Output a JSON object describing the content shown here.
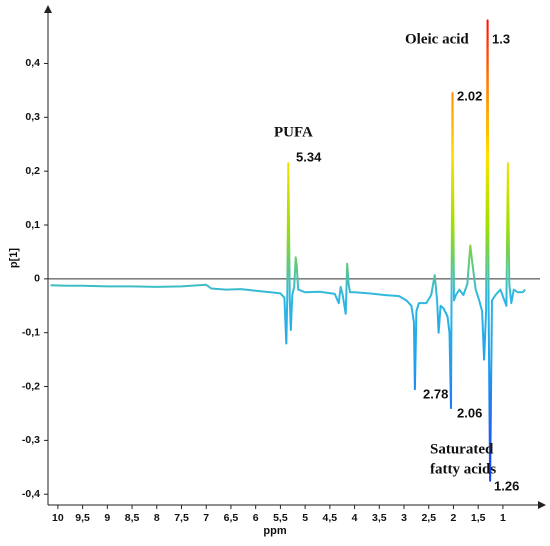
{
  "chart_data": {
    "type": "line",
    "x_label": "ppm",
    "y_label": "p[1]",
    "annotations": [
      "Oleic acid",
      "1.3",
      "PUFA",
      "5.34",
      "2.02",
      "2.78",
      "2.06",
      "Saturated",
      "fatty acids",
      "1.26"
    ],
    "xlim": [
      10.2,
      0.25
    ],
    "ylim": [
      -0.42,
      0.49
    ],
    "xticks": [
      10,
      {
        "value": 9.5,
        "label": "9,5"
      },
      9,
      {
        "value": 8.5,
        "label": "8,5"
      },
      8,
      {
        "value": 7.5,
        "label": "7,5"
      },
      7,
      {
        "value": 6.5,
        "label": "6,5"
      },
      6,
      {
        "value": 5.5,
        "label": "5,5"
      },
      5,
      {
        "value": 4.5,
        "label": "4,5"
      },
      4,
      {
        "value": 3.5,
        "label": "3,5"
      },
      3,
      {
        "value": 2.5,
        "label": "2,5"
      },
      2,
      {
        "value": 1.5,
        "label": "1,5"
      },
      1
    ],
    "yticks": [
      {
        "value": -0.4,
        "label": "-0,4"
      },
      {
        "value": -0.3,
        "label": "-0,3"
      },
      {
        "value": -0.2,
        "label": "-0,2"
      },
      {
        "value": -0.1,
        "label": "-0,1"
      },
      0,
      {
        "value": 0.1,
        "label": "0,1"
      },
      {
        "value": 0.2,
        "label": "0,2"
      },
      {
        "value": 0.3,
        "label": "0,3"
      },
      {
        "value": 0.4,
        "label": "0,4"
      }
    ],
    "zero_line": true,
    "colormap": [
      "#ff0000",
      "#ff8000",
      "#ffe000",
      "#a0e000",
      "#30b8e0",
      "#20a0f0",
      "#2060f0",
      "#1030ff"
    ],
    "x": [
      10.15,
      9.8,
      9.5,
      9.0,
      8.5,
      8.0,
      7.5,
      7.0,
      6.9,
      6.6,
      6.3,
      6.0,
      5.7,
      5.5,
      5.42,
      5.38,
      5.36,
      5.34,
      5.31,
      5.29,
      5.26,
      5.22,
      5.19,
      5.17,
      5.14,
      5.0,
      4.7,
      4.4,
      4.32,
      4.28,
      4.24,
      4.18,
      4.15,
      4.12,
      4.09,
      4.0,
      3.7,
      3.4,
      3.1,
      2.95,
      2.85,
      2.8,
      2.78,
      2.75,
      2.7,
      2.55,
      2.45,
      2.38,
      2.33,
      2.3,
      2.26,
      2.2,
      2.12,
      2.08,
      2.05,
      2.02,
      1.99,
      1.95,
      1.88,
      1.8,
      1.72,
      1.66,
      1.62,
      1.55,
      1.48,
      1.42,
      1.38,
      1.34,
      1.31,
      1.29,
      1.26,
      1.22,
      1.15,
      1.05,
      0.97,
      0.93,
      0.9,
      0.87,
      0.83,
      0.78,
      0.7,
      0.6,
      0.55
    ],
    "values": [
      -0.012,
      -0.013,
      -0.013,
      -0.014,
      -0.014,
      -0.015,
      -0.014,
      -0.011,
      -0.018,
      -0.02,
      -0.019,
      -0.022,
      -0.025,
      -0.027,
      -0.035,
      -0.12,
      -0.03,
      0.215,
      -0.04,
      -0.095,
      -0.03,
      -0.015,
      0.04,
      0.025,
      -0.02,
      -0.025,
      -0.024,
      -0.028,
      -0.045,
      -0.015,
      -0.03,
      -0.065,
      0.028,
      -0.01,
      -0.025,
      -0.025,
      -0.027,
      -0.03,
      -0.032,
      -0.04,
      -0.05,
      -0.08,
      -0.205,
      -0.06,
      -0.045,
      -0.045,
      -0.03,
      0.007,
      -0.04,
      -0.1,
      -0.05,
      -0.055,
      -0.07,
      -0.1,
      -0.24,
      0.345,
      -0.04,
      -0.03,
      -0.02,
      -0.03,
      -0.01,
      0.062,
      0.03,
      -0.02,
      -0.04,
      -0.06,
      -0.15,
      -0.06,
      0.48,
      -0.05,
      -0.375,
      -0.04,
      -0.03,
      -0.02,
      -0.04,
      -0.05,
      0.215,
      -0.01,
      -0.045,
      -0.02,
      -0.025,
      -0.025,
      -0.02
    ]
  }
}
